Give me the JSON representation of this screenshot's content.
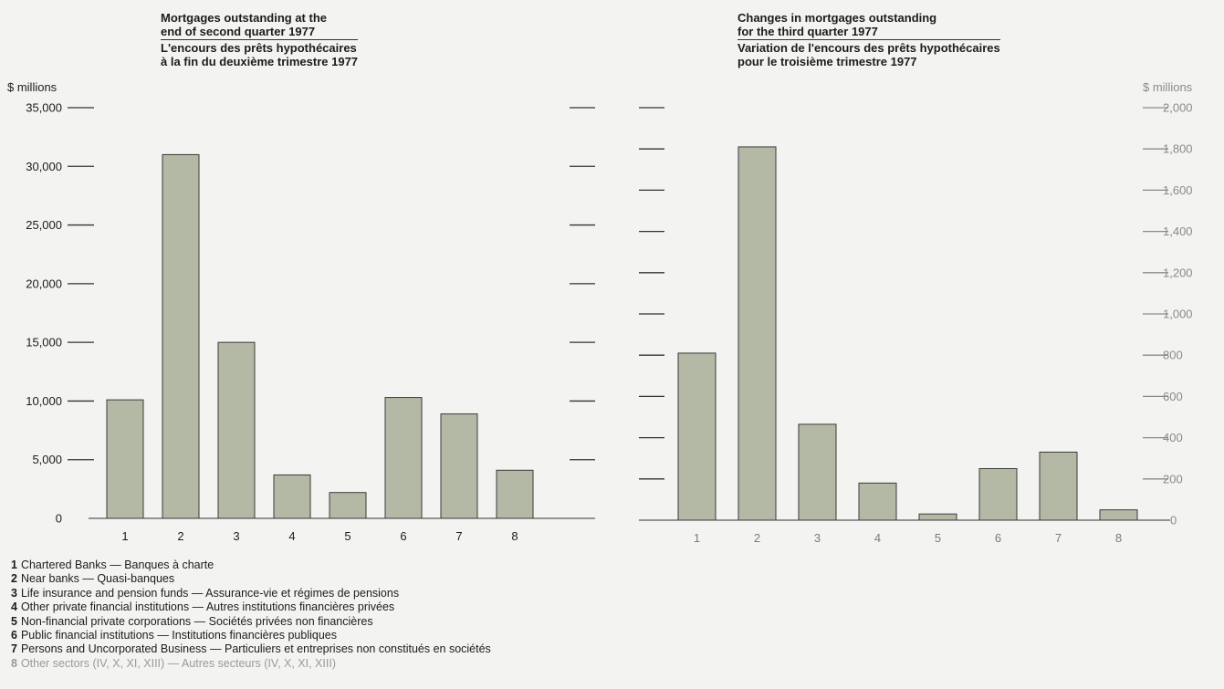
{
  "titles": {
    "left": {
      "line1": "Mortgages outstanding at the",
      "line2": "end of second quarter 1977",
      "line3": "L'encours des prêts hypothécaires",
      "line4": "à la fin du deuxième trimestre 1977"
    },
    "right": {
      "line1": "Changes in mortgages outstanding",
      "line2": "for the third quarter 1977",
      "line3": "Variation de l'encours des prêts hypothécaires",
      "line4": "pour le troisième trimestre 1977"
    }
  },
  "units": {
    "left": "$ millions",
    "right": "$ millions"
  },
  "colors": {
    "bar": "#b4b9a6",
    "bar_edge": "#3a3a3a",
    "axis": "#333333",
    "faded_axis": "#8a8a8a"
  },
  "chart_data": [
    {
      "type": "bar",
      "ylabel": "$ millions",
      "ylim": [
        0,
        35000
      ],
      "yticks": [
        "0",
        "5,000",
        "10,000",
        "15,000",
        "20,000",
        "25,000",
        "30,000",
        "35,000"
      ],
      "categories": [
        "1",
        "2",
        "3",
        "4",
        "5",
        "6",
        "7",
        "8"
      ],
      "values": [
        10100,
        31000,
        15000,
        3700,
        2200,
        10300,
        8900,
        4100
      ]
    },
    {
      "type": "bar",
      "ylabel": "$ millions",
      "ylim": [
        0,
        2000
      ],
      "yticks": [
        "0",
        "200",
        "400",
        "600",
        "800",
        "1,000",
        "1,200",
        "1,400",
        "1,600",
        "1,800",
        "2,000"
      ],
      "categories": [
        "1",
        "2",
        "3",
        "4",
        "5",
        "6",
        "7",
        "8"
      ],
      "values": [
        810,
        1810,
        465,
        180,
        30,
        250,
        330,
        50
      ]
    }
  ],
  "legend": [
    {
      "num": "1",
      "text": "Chartered Banks — Banques à charte"
    },
    {
      "num": "2",
      "text": "Near banks — Quasi-banques"
    },
    {
      "num": "3",
      "text": "Life insurance and pension funds — Assurance-vie et régimes de pensions"
    },
    {
      "num": "4",
      "text": "Other private financial institutions — Autres institutions financières privées"
    },
    {
      "num": "5",
      "text": "Non-financial private corporations — Sociétés privées non financières"
    },
    {
      "num": "6",
      "text": "Public financial institutions — Institutions financières publiques"
    },
    {
      "num": "7",
      "text": "Persons and Uncorporated Business — Particuliers et entreprises non constitués en sociétés"
    },
    {
      "num": "8",
      "text": "Other sectors (IV, X, XI, XIII) — Autres secteurs (IV, X, XI, XIII)"
    }
  ]
}
